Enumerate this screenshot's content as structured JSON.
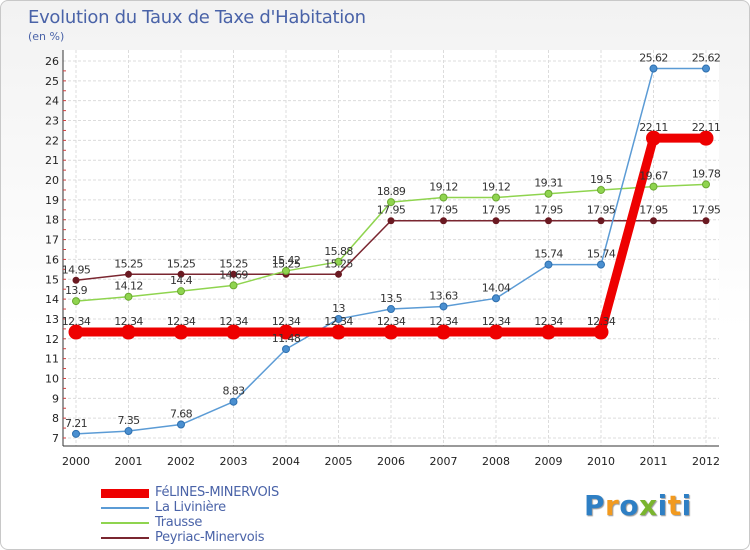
{
  "title": "Evolution du Taux de Taxe d'Habitation",
  "subtitle": "(en %)",
  "logo": {
    "text": "Proxiti",
    "colors": [
      "#2e7fc4",
      "#f29a1f",
      "#2e7fc4",
      "#7ab52e",
      "#2e7fc4",
      "#f29a1f",
      "#2e7fc4"
    ]
  },
  "chart_data": {
    "type": "line",
    "x": [
      "2000",
      "2001",
      "2002",
      "2003",
      "2004",
      "2005",
      "2006",
      "2007",
      "2008",
      "2009",
      "2010",
      "2011",
      "2012"
    ],
    "ylim": [
      7,
      26
    ],
    "yticks": [
      7,
      8,
      9,
      10,
      11,
      12,
      13,
      14,
      15,
      16,
      17,
      18,
      19,
      20,
      21,
      22,
      23,
      24,
      25,
      26
    ],
    "grid": true,
    "legend_position": "bottom-left",
    "series": [
      {
        "name": "Peyriac-Minervois",
        "color": "#7a2630",
        "values": [
          14.95,
          15.25,
          15.25,
          15.25,
          15.25,
          15.25,
          17.95,
          17.95,
          17.95,
          17.95,
          17.95,
          17.95,
          17.95
        ],
        "labels": [
          "14.95",
          "15.25",
          "15.25",
          "15.25",
          "15.25",
          "15.25",
          "17.95",
          "17.95",
          "17.95",
          "17.95",
          "17.95",
          "17.95",
          "17.95"
        ]
      },
      {
        "name": "Trausse",
        "color": "#8fd44f",
        "values": [
          13.9,
          14.12,
          14.4,
          14.69,
          15.42,
          15.88,
          18.89,
          19.12,
          19.12,
          19.31,
          19.5,
          19.67,
          19.78
        ],
        "labels": [
          "13.9",
          "14.12",
          "14.4",
          "14.69",
          "15.42",
          "15.88",
          "18.89",
          "19.12",
          "19.12",
          "19.31",
          "19.5",
          "19.67",
          "19.78"
        ]
      },
      {
        "name": "La Livinière",
        "color": "#5b9bd5",
        "values": [
          7.21,
          7.35,
          7.68,
          8.83,
          11.48,
          13,
          13.5,
          13.63,
          14.04,
          15.74,
          15.74,
          25.62,
          25.62
        ],
        "labels": [
          "7.21",
          "7.35",
          "7.68",
          "8.83",
          "11.48",
          "13",
          "13.5",
          "13.63",
          "14.04",
          "15.74",
          "15.74",
          "25.62",
          "25.62"
        ]
      },
      {
        "name": "FéLINES-MINERVOIS",
        "color": "#ee0000",
        "values": [
          12.34,
          12.34,
          12.34,
          12.34,
          12.34,
          12.34,
          12.34,
          12.34,
          12.34,
          12.34,
          12.34,
          22.11,
          22.11
        ],
        "labels": [
          "12.34",
          "12.34",
          "12.34",
          "12.34",
          "12.34",
          "12.34",
          "12.34",
          "12.34",
          "12.34",
          "12.34",
          "12.34",
          "22.11",
          "22.11"
        ]
      }
    ],
    "legend_order": [
      "FéLINES-MINERVOIS",
      "La Livinière",
      "Trausse",
      "Peyriac-Minervois"
    ]
  }
}
